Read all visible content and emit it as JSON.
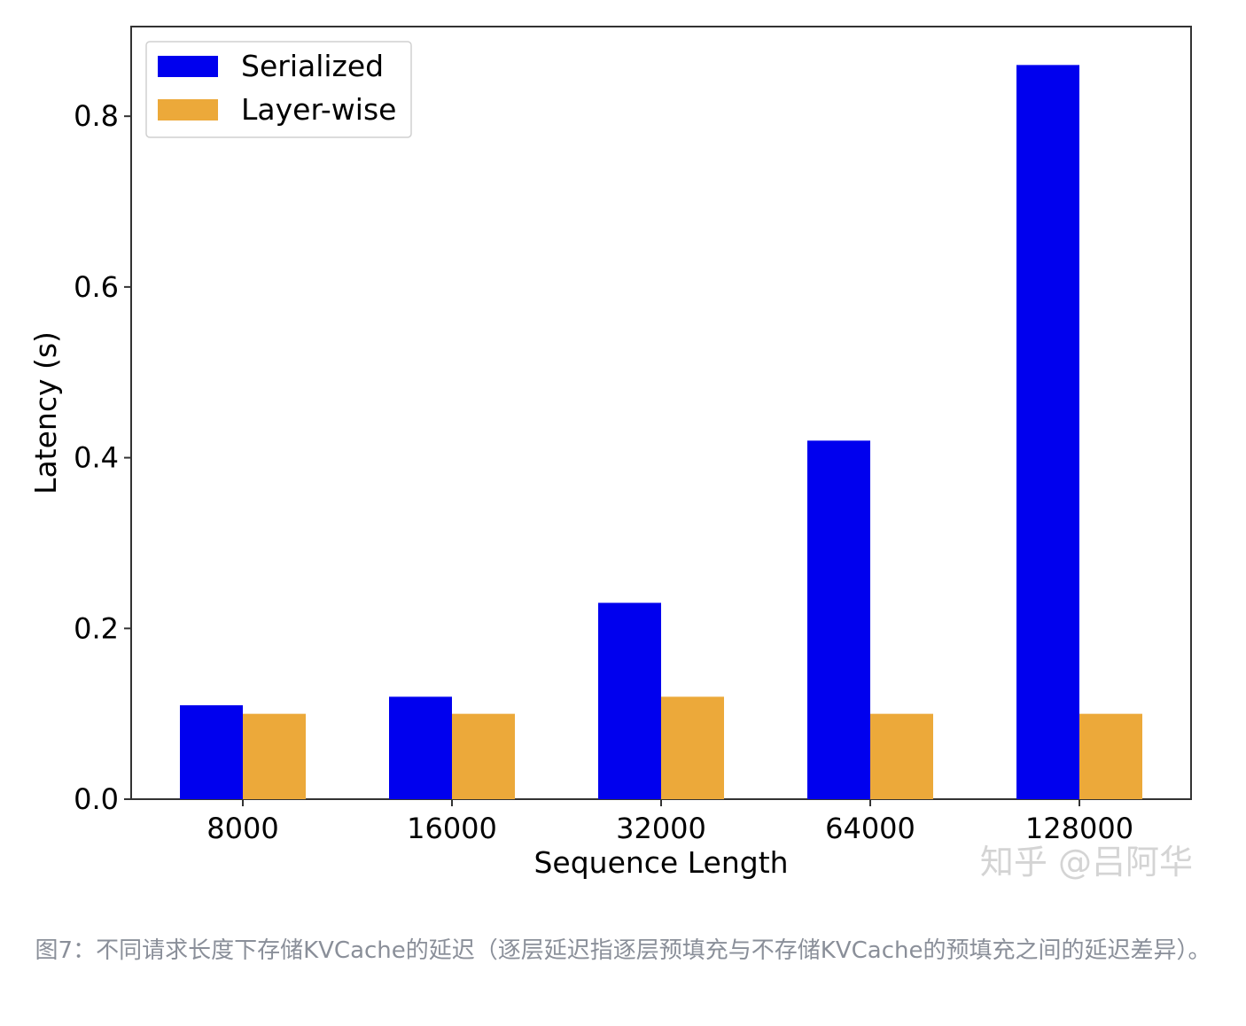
{
  "chart_data": {
    "type": "bar",
    "categories": [
      "8000",
      "16000",
      "32000",
      "64000",
      "128000"
    ],
    "series": [
      {
        "name": "Serialized",
        "values": [
          0.11,
          0.12,
          0.23,
          0.42,
          0.86
        ],
        "color": "#0000ee"
      },
      {
        "name": "Layer-wise",
        "values": [
          0.1,
          0.1,
          0.12,
          0.1,
          0.1
        ],
        "color": "#eca93a"
      }
    ],
    "title": "",
    "xlabel": "Sequence Length",
    "ylabel": "Latency (s)",
    "ylim": [
      0,
      0.905
    ],
    "yticks": [
      "0.0",
      "0.2",
      "0.4",
      "0.6",
      "0.8"
    ],
    "grid": false,
    "legend_position": "top-left"
  },
  "watermark": "知乎 @吕阿华",
  "caption": "图7：不同请求长度下存储KVCache的延迟（逐层延迟指逐层预填充与不存储KVCache的预填充之间的延迟差异）。"
}
